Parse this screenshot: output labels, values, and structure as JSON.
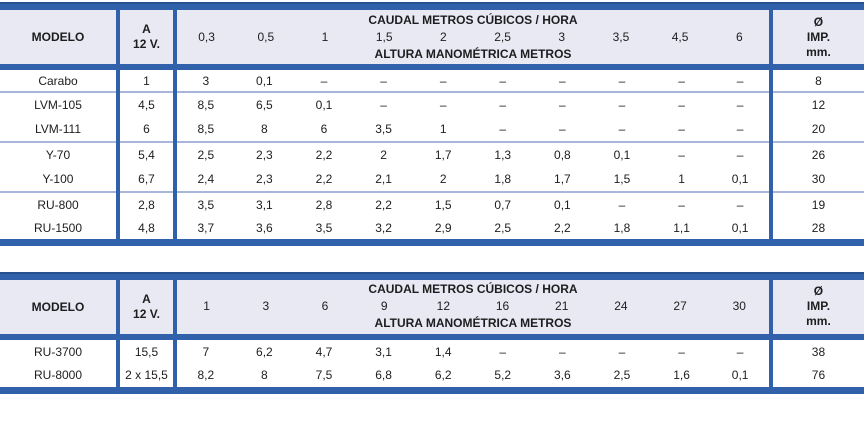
{
  "colors": {
    "table_blue": "#3161ab",
    "table_blue_dark": "#27528f",
    "row_separator_blue": "#a9b6dc",
    "header_bg": "#e8e9f2",
    "text": "#1d1d1f"
  },
  "tables": [
    {
      "name": "small-pumps-table",
      "header": {
        "modelo": "MODELO",
        "amp_line1": "A",
        "amp_line2": "12 V.",
        "caudal_title": "CAUDAL METROS CÚBICOS / HORA",
        "altura_title": "ALTURA MANOMÉTRICA METROS",
        "flow_columns": [
          "0,3",
          "0,5",
          "1",
          "1,5",
          "2",
          "2,5",
          "3",
          "3,5",
          "4,5",
          "6"
        ],
        "diameter_line1": "Ø",
        "diameter_line2": "IMP.",
        "diameter_line3": "mm."
      },
      "groups": [
        {
          "rows": [
            {
              "model": "Carabo",
              "amp": "1",
              "values": [
                "3",
                "0,1",
                "–",
                "–",
                "–",
                "–",
                "–",
                "–",
                "–",
                "–"
              ],
              "diameter": "8"
            }
          ]
        },
        {
          "rows": [
            {
              "model": "LVM-105",
              "amp": "4,5",
              "values": [
                "8,5",
                "6,5",
                "0,1",
                "–",
                "–",
                "–",
                "–",
                "–",
                "–",
                "–"
              ],
              "diameter": "12"
            },
            {
              "model": "LVM-111",
              "amp": "6",
              "values": [
                "8,5",
                "8",
                "6",
                "3,5",
                "1",
                "–",
                "–",
                "–",
                "–",
                "–"
              ],
              "diameter": "20"
            }
          ]
        },
        {
          "rows": [
            {
              "model": "Y-70",
              "amp": "5,4",
              "values": [
                "2,5",
                "2,3",
                "2,2",
                "2",
                "1,7",
                "1,3",
                "0,8",
                "0,1",
                "–",
                "–"
              ],
              "diameter": "26"
            },
            {
              "model": "Y-100",
              "amp": "6,7",
              "values": [
                "2,4",
                "2,3",
                "2,2",
                "2,1",
                "2",
                "1,8",
                "1,7",
                "1,5",
                "1",
                "0,1"
              ],
              "diameter": "30"
            }
          ]
        },
        {
          "rows": [
            {
              "model": "RU-800",
              "amp": "2,8",
              "values": [
                "3,5",
                "3,1",
                "2,8",
                "2,2",
                "1,5",
                "0,7",
                "0,1",
                "–",
                "–",
                "–"
              ],
              "diameter": "19"
            },
            {
              "model": "RU-1500",
              "amp": "4,8",
              "values": [
                "3,7",
                "3,6",
                "3,5",
                "3,2",
                "2,9",
                "2,5",
                "2,2",
                "1,8",
                "1,1",
                "0,1"
              ],
              "diameter": "28"
            }
          ]
        }
      ]
    },
    {
      "name": "large-pumps-table",
      "header": {
        "modelo": "MODELO",
        "amp_line1": "A",
        "amp_line2": "12 V.",
        "caudal_title": "CAUDAL METROS CÚBICOS / HORA",
        "altura_title": "ALTURA MANOMÉTRICA METROS",
        "flow_columns": [
          "1",
          "3",
          "6",
          "9",
          "12",
          "16",
          "21",
          "24",
          "27",
          "30"
        ],
        "diameter_line1": "Ø",
        "diameter_line2": "IMP.",
        "diameter_line3": "mm."
      },
      "groups": [
        {
          "rows": [
            {
              "model": "RU-3700",
              "amp": "15,5",
              "values": [
                "7",
                "6,2",
                "4,7",
                "3,1",
                "1,4",
                "–",
                "–",
                "–",
                "–",
                "–"
              ],
              "diameter": "38"
            },
            {
              "model": "RU-8000",
              "amp": "2 x 15,5",
              "values": [
                "8,2",
                "8",
                "7,5",
                "6,8",
                "6,2",
                "5,2",
                "3,6",
                "2,5",
                "1,6",
                "0,1"
              ],
              "diameter": "76"
            }
          ]
        }
      ]
    }
  ]
}
